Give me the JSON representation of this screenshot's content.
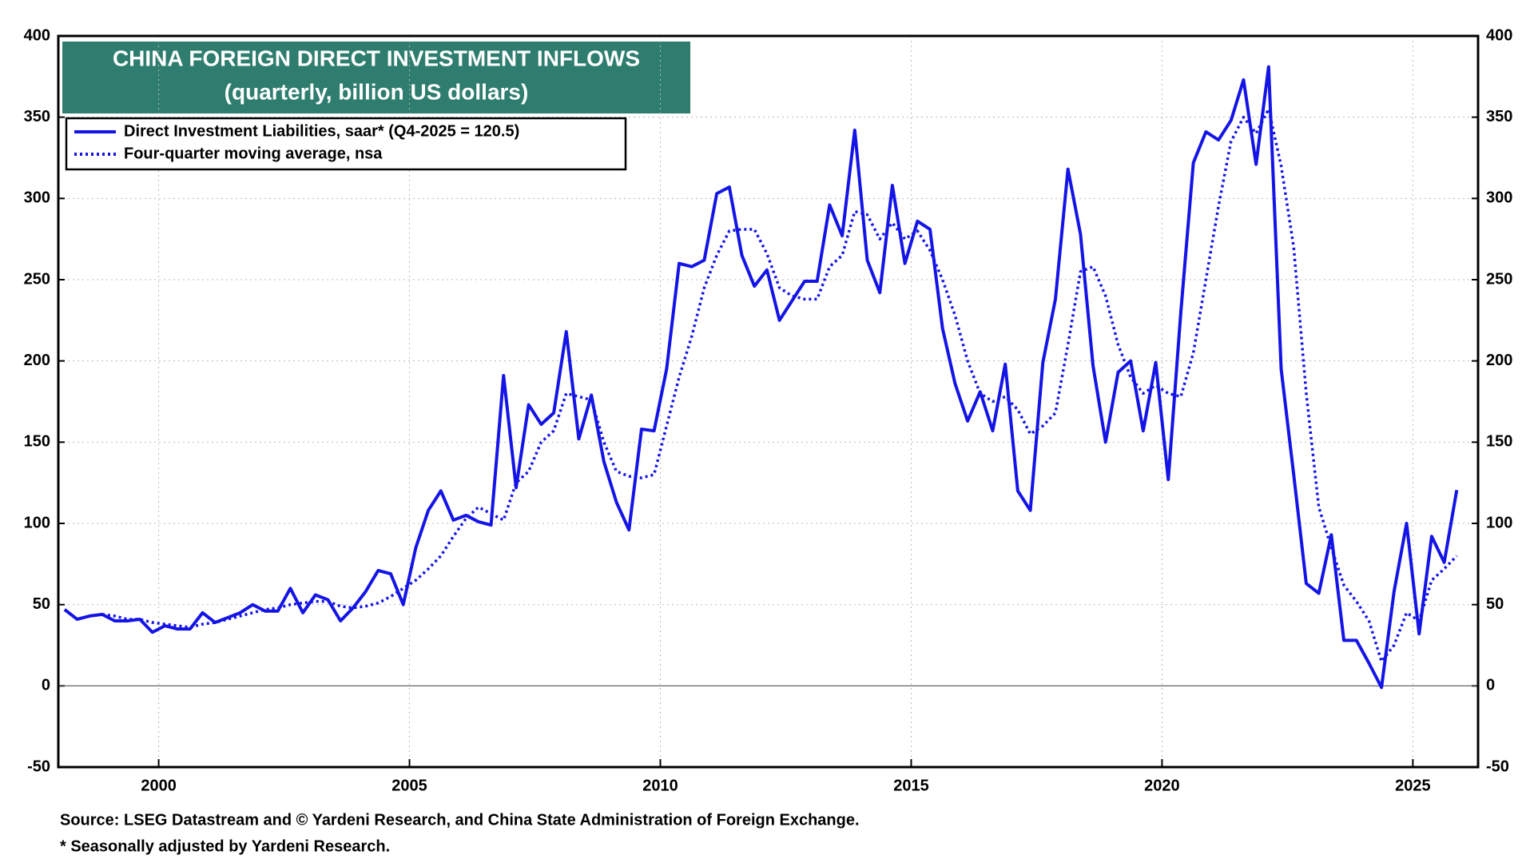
{
  "chart_data": {
    "type": "line",
    "title": "CHINA FOREIGN DIRECT INVESTMENT INFLOWS",
    "subtitle": "(quarterly, billion US dollars)",
    "notes": [
      "Source: LSEG Datastream and © Yardeni Research, and China State Administration of Foreign Exchange.",
      "* Seasonally adjusted by Yardeni Research."
    ],
    "x": [
      1998.125,
      1998.375,
      1998.625,
      1998.875,
      1999.125,
      1999.375,
      1999.625,
      1999.875,
      2000.125,
      2000.375,
      2000.625,
      2000.875,
      2001.125,
      2001.375,
      2001.625,
      2001.875,
      2002.125,
      2002.375,
      2002.625,
      2002.875,
      2003.125,
      2003.375,
      2003.625,
      2003.875,
      2004.125,
      2004.375,
      2004.625,
      2004.875,
      2005.125,
      2005.375,
      2005.625,
      2005.875,
      2006.125,
      2006.375,
      2006.625,
      2006.875,
      2007.125,
      2007.375,
      2007.625,
      2007.875,
      2008.125,
      2008.375,
      2008.625,
      2008.875,
      2009.125,
      2009.375,
      2009.625,
      2009.875,
      2010.125,
      2010.375,
      2010.625,
      2010.875,
      2011.125,
      2011.375,
      2011.625,
      2011.875,
      2012.125,
      2012.375,
      2012.625,
      2012.875,
      2013.125,
      2013.375,
      2013.625,
      2013.875,
      2014.125,
      2014.375,
      2014.625,
      2014.875,
      2015.125,
      2015.375,
      2015.625,
      2015.875,
      2016.125,
      2016.375,
      2016.625,
      2016.875,
      2017.125,
      2017.375,
      2017.625,
      2017.875,
      2018.125,
      2018.375,
      2018.625,
      2018.875,
      2019.125,
      2019.375,
      2019.625,
      2019.875,
      2020.125,
      2020.375,
      2020.625,
      2020.875,
      2021.125,
      2021.375,
      2021.625,
      2021.875,
      2022.125,
      2022.375,
      2022.625,
      2022.875,
      2023.125,
      2023.375,
      2023.625,
      2023.875,
      2024.125,
      2024.375,
      2024.625,
      2024.875,
      2025.125,
      2025.375,
      2025.625,
      2025.875
    ],
    "series": [
      {
        "name": "Direct Investment Liabilities, saar* (Q4-2025 = 120.5)",
        "color": "#1414e6",
        "style": "solid",
        "values": [
          47,
          41,
          43,
          44,
          40,
          40,
          41,
          33,
          37,
          35,
          35,
          45,
          39,
          42,
          45,
          50,
          46,
          46,
          60,
          45,
          56,
          53,
          40,
          48,
          58,
          71,
          69,
          50,
          85,
          108,
          120,
          102,
          105,
          101,
          99,
          191,
          122,
          173,
          161,
          168,
          218,
          152,
          179,
          138,
          113,
          96,
          158,
          157,
          195,
          260,
          258,
          262,
          303,
          307,
          265,
          246,
          256,
          225,
          237,
          249,
          249,
          296,
          277,
          342,
          262,
          242,
          308,
          260,
          286,
          281,
          220,
          186,
          163,
          181,
          157,
          198,
          120,
          108,
          199,
          238,
          318,
          278,
          197,
          150,
          193,
          200,
          157,
          199,
          127,
          230,
          322,
          341,
          336,
          348,
          373,
          321,
          381,
          195,
          130,
          63,
          57,
          93,
          28,
          28,
          14,
          -1,
          58,
          100,
          32,
          92,
          76,
          120.5
        ]
      },
      {
        "name": "Four-quarter moving average, nsa",
        "color": "#1414e6",
        "style": "dotted",
        "values": [
          null,
          null,
          null,
          44,
          43,
          41,
          41,
          39,
          38,
          37,
          36,
          38,
          39,
          41,
          43,
          45,
          47,
          48,
          50,
          51,
          52,
          52,
          49,
          48,
          49,
          51,
          55,
          60,
          65,
          72,
          80,
          92,
          103,
          110,
          106,
          102,
          125,
          132,
          150,
          157,
          180,
          178,
          176,
          150,
          132,
          129,
          128,
          130,
          160,
          190,
          215,
          245,
          265,
          280,
          281,
          281,
          266,
          245,
          240,
          238,
          238,
          258,
          265,
          292,
          290,
          275,
          285,
          275,
          280,
          268,
          250,
          228,
          200,
          180,
          175,
          178,
          170,
          155,
          160,
          168,
          210,
          255,
          258,
          240,
          210,
          190,
          180,
          185,
          180,
          178,
          205,
          250,
          295,
          335,
          350,
          340,
          355,
          320,
          270,
          180,
          110,
          85,
          62,
          52,
          40,
          15,
          25,
          45,
          40,
          65,
          72,
          80
        ]
      }
    ],
    "xlim": [
      1998,
      2026.3
    ],
    "xticks": [
      2000,
      2005,
      2010,
      2015,
      2020,
      2025
    ],
    "ylim": [
      -50,
      400
    ],
    "yticks": [
      -50,
      0,
      50,
      100,
      150,
      200,
      250,
      300,
      350,
      400
    ],
    "y2lim": [
      -50,
      400
    ],
    "y2ticks": [
      -50,
      0,
      50,
      100,
      150,
      200,
      250,
      300,
      350,
      400
    ],
    "grid": true,
    "legend": "upper left"
  }
}
